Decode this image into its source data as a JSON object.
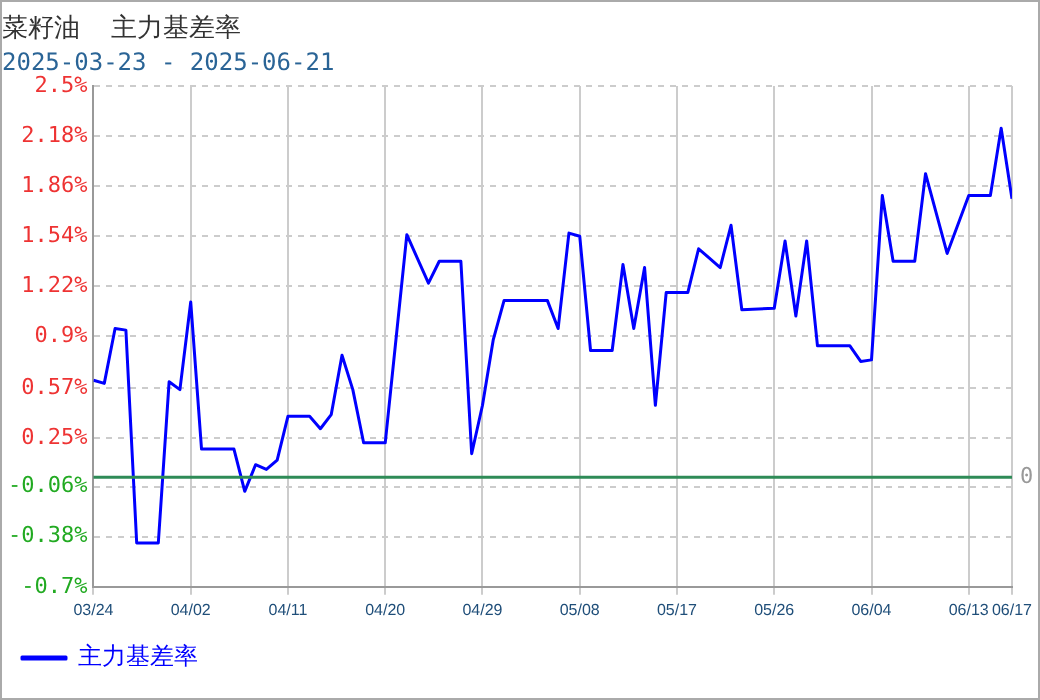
{
  "chart_data": {
    "type": "line",
    "title": "菜籽油  主力基差率",
    "subtitle": "2025-03-23 - 2025-06-21",
    "x": [
      "2025-03-24",
      "2025-03-25",
      "2025-03-26",
      "2025-03-27",
      "2025-03-28",
      "2025-03-30",
      "2025-03-31",
      "2025-04-01",
      "2025-04-02",
      "2025-04-03",
      "2025-04-06",
      "2025-04-07",
      "2025-04-08",
      "2025-04-09",
      "2025-04-10",
      "2025-04-11",
      "2025-04-13",
      "2025-04-14",
      "2025-04-15",
      "2025-04-16",
      "2025-04-17",
      "2025-04-18",
      "2025-04-20",
      "2025-04-22",
      "2025-04-24",
      "2025-04-25",
      "2025-04-27",
      "2025-04-28",
      "2025-04-29",
      "2025-04-30",
      "2025-05-01",
      "2025-05-05",
      "2025-05-06",
      "2025-05-07",
      "2025-05-08",
      "2025-05-09",
      "2025-05-11",
      "2025-05-12",
      "2025-05-13",
      "2025-05-14",
      "2025-05-15",
      "2025-05-16",
      "2025-05-18",
      "2025-05-19",
      "2025-05-21",
      "2025-05-22",
      "2025-05-23",
      "2025-05-26",
      "2025-05-27",
      "2025-05-28",
      "2025-05-29",
      "2025-05-30",
      "2025-06-02",
      "2025-06-03",
      "2025-06-04",
      "2025-06-05",
      "2025-06-06",
      "2025-06-08",
      "2025-06-09",
      "2025-06-11",
      "2025-06-13",
      "2025-06-15",
      "2025-06-16",
      "2025-06-17"
    ],
    "series": [
      {
        "name": "主力基差率",
        "color": "#0000ff",
        "values": [
          0.62,
          0.6,
          0.95,
          0.94,
          -0.42,
          -0.42,
          0.61,
          0.56,
          1.12,
          0.18,
          0.18,
          -0.09,
          0.08,
          0.05,
          0.11,
          0.39,
          0.39,
          0.31,
          0.4,
          0.78,
          0.56,
          0.22,
          0.22,
          1.55,
          1.24,
          1.38,
          1.38,
          0.15,
          0.46,
          0.88,
          1.13,
          1.13,
          0.95,
          1.56,
          1.54,
          0.81,
          0.81,
          1.36,
          0.95,
          1.34,
          0.46,
          1.18,
          1.18,
          1.46,
          1.34,
          1.61,
          1.07,
          1.08,
          1.51,
          1.03,
          1.51,
          0.84,
          0.84,
          0.74,
          0.75,
          1.8,
          1.38,
          1.38,
          1.94,
          1.43,
          1.8,
          1.8,
          2.23,
          1.78
        ]
      }
    ],
    "xlim": [
      "2025-03-24",
      "2025-06-17"
    ],
    "xticks": [
      {
        "value": "2025-03-24",
        "label": "03/24"
      },
      {
        "value": "2025-04-02",
        "label": "04/02"
      },
      {
        "value": "2025-04-11",
        "label": "04/11"
      },
      {
        "value": "2025-04-20",
        "label": "04/20"
      },
      {
        "value": "2025-04-29",
        "label": "04/29"
      },
      {
        "value": "2025-05-08",
        "label": "05/08"
      },
      {
        "value": "2025-05-17",
        "label": "05/17"
      },
      {
        "value": "2025-05-26",
        "label": "05/26"
      },
      {
        "value": "2025-06-04",
        "label": "06/04"
      },
      {
        "value": "2025-06-13",
        "label": "06/13"
      },
      {
        "value": "2025-06-17",
        "label": "06/17"
      }
    ],
    "ylim": [
      -0.7,
      2.5
    ],
    "yticks": [
      {
        "value": -0.7,
        "label": "-0.7%"
      },
      {
        "value": -0.38,
        "label": "-0.38%"
      },
      {
        "value": -0.06,
        "label": "-0.06%"
      },
      {
        "value": 0.25,
        "label": "0.25%"
      },
      {
        "value": 0.57,
        "label": "0.57%"
      },
      {
        "value": 0.9,
        "label": "0.9%"
      },
      {
        "value": 1.22,
        "label": "1.22%"
      },
      {
        "value": 1.54,
        "label": "1.54%"
      },
      {
        "value": 1.86,
        "label": "1.86%"
      },
      {
        "value": 2.18,
        "label": "2.18%"
      },
      {
        "value": 2.5,
        "label": "2.5%"
      }
    ],
    "ref_lines": [
      {
        "axis": "y",
        "value": 0,
        "label": "0",
        "color": "#2e8b57"
      }
    ],
    "grid": true,
    "legend": "bottom left",
    "marker": "none",
    "line_style": "solid"
  }
}
